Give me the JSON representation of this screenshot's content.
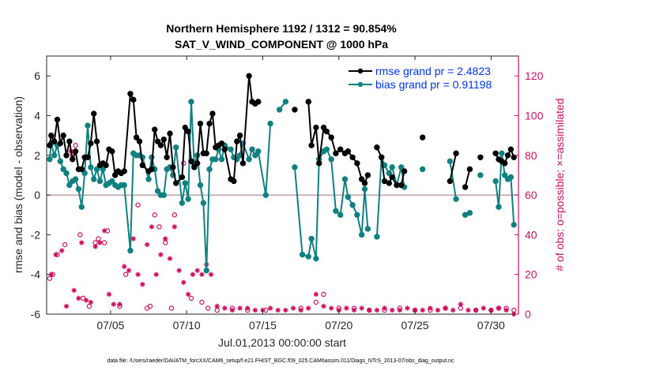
{
  "chart_data": {
    "type": "line",
    "title": "Northern Hemisphere 1192 / 1312 = 90.854%",
    "subtitle": "SAT_V_WIND_COMPONENT @ 1000 hPa",
    "xlabel": "Jul.01,2013 00:00:00 start",
    "ylabel_left": "rmse and bias (model - observation)",
    "ylabel_right": "# of obs: o=possible; ×=assimilated",
    "footer": "data file: /Users/raeder/DAI/ATM_forcXX/CAM6_setup/f.e21.FHIST_BGC.f09_025.CAM6assim.011/Diags_NTrS_2013-07/obs_diag_output.nc",
    "xlim": [
      0.8,
      31.8
    ],
    "ylim_left": [
      -6,
      7
    ],
    "ylim_right": [
      0,
      130
    ],
    "x_ticks": [
      5,
      10,
      15,
      20,
      25,
      30
    ],
    "x_tick_labels": [
      "07/05",
      "07/10",
      "07/15",
      "07/20",
      "07/25",
      "07/30"
    ],
    "y_ticks_left": [
      -6,
      -4,
      -2,
      0,
      2,
      4,
      6
    ],
    "y_ticks_right": [
      0,
      20,
      40,
      60,
      80,
      100,
      120
    ],
    "grid": false,
    "legend_placement": "top-right",
    "colors": {
      "rmse": "#000000",
      "bias": "#108080",
      "obs": "#d01060",
      "zero_line": "#c0a0a8",
      "legend_text": "#0033ee"
    },
    "series": [
      {
        "name": "rmse grand pr = 2.4823",
        "marker": "circle",
        "x": [
          1.0,
          1.1,
          1.3,
          1.5,
          1.7,
          1.9,
          2.1,
          2.3,
          2.5,
          2.7,
          2.9,
          3.1,
          3.3,
          3.5,
          3.7,
          3.9,
          4.1,
          4.3,
          4.5,
          4.7,
          4.9,
          5.1,
          5.3,
          5.5,
          5.7,
          5.9,
          6.3,
          6.5,
          6.7,
          6.9,
          7.1,
          7.5,
          7.7,
          7.9,
          8.1,
          8.3,
          8.5,
          8.7,
          8.9,
          9.1,
          9.3,
          9.7,
          9.9,
          10.1,
          10.3,
          10.5,
          10.7,
          10.9,
          11.1,
          11.3,
          11.5,
          11.7,
          11.9,
          12.1,
          12.3,
          12.5,
          12.9,
          13.1,
          13.3,
          13.5,
          13.7,
          14.1,
          14.3,
          14.5,
          14.7,
          17.1,
          18.0,
          18.2,
          18.5,
          18.7,
          19.0,
          19.2,
          19.5,
          19.8,
          20.1,
          20.4,
          20.6,
          20.9,
          21.2,
          21.5,
          21.7,
          21.9,
          22.5,
          22.8,
          23.0,
          23.3,
          23.5,
          23.8,
          24.1,
          24.3,
          25.5,
          27.3,
          27.7,
          28.3,
          28.6,
          29.3,
          30.3,
          30.5,
          30.7,
          30.9,
          31.1,
          31.3,
          31.5
        ],
        "values": [
          2.5,
          3.0,
          2.7,
          3.8,
          2.6,
          3.0,
          2.0,
          2.7,
          1.8,
          2.2,
          1.3,
          1.3,
          1.9,
          1.9,
          2.6,
          4.1,
          2.7,
          1.5,
          1.6,
          1.5,
          2.3,
          2.2,
          1.0,
          1.2,
          1.1,
          1.2,
          5.1,
          4.8,
          2.9,
          2.7,
          1.5,
          1.2,
          1.3,
          3.3,
          2.7,
          2.5,
          2.8,
          1.9,
          3.1,
          1.4,
          0.6,
          0.9,
          3.4,
          3.2,
          1.7,
          1.4,
          1.6,
          3.6,
          2.1,
          2.1,
          3.6,
          4.1,
          2.4,
          2.5,
          2.6,
          2.3,
          0.8,
          0.7,
          2.7,
          3.0,
          1.6,
          6.0,
          4.7,
          4.6,
          4.7,
          4.3,
          4.7,
          2.5,
          3.4,
          1.6,
          3.4,
          3.2,
          2.9,
          2.1,
          2.3,
          2.1,
          2.2,
          1.9,
          1.6,
          0.8,
          0.6,
          1.0,
          2.4,
          1.9,
          0.7,
          0.6,
          0.9,
          0.5,
          0.5,
          1.2,
          2.9,
          0.7,
          2.1,
          0.4,
          1.3,
          1.9,
          2.1,
          1.8,
          1.7,
          1.6,
          2.0,
          2.3,
          1.9
        ]
      },
      {
        "name": "bias grand pr = 0.91198",
        "marker": "circle",
        "x": [
          1.0,
          1.1,
          1.3,
          1.5,
          1.7,
          1.9,
          2.1,
          2.3,
          2.5,
          2.7,
          2.9,
          3.1,
          3.3,
          3.5,
          3.7,
          3.9,
          4.1,
          4.3,
          4.5,
          4.7,
          4.9,
          5.1,
          5.3,
          5.5,
          5.7,
          5.9,
          6.3,
          6.5,
          6.7,
          6.9,
          7.1,
          7.5,
          7.7,
          7.9,
          8.1,
          8.3,
          8.5,
          8.7,
          8.9,
          9.1,
          9.3,
          9.7,
          9.9,
          10.1,
          10.3,
          10.5,
          10.7,
          10.9,
          11.1,
          11.3,
          11.5,
          11.7,
          11.9,
          12.1,
          12.3,
          12.5,
          12.9,
          13.1,
          13.3,
          13.5,
          13.7,
          14.1,
          14.3,
          14.5,
          14.7,
          15.2,
          15.5,
          16.1,
          16.5,
          17.1,
          17.6,
          18.0,
          18.2,
          18.5,
          18.7,
          19.0,
          19.2,
          19.5,
          19.8,
          20.1,
          20.4,
          20.6,
          20.9,
          21.2,
          21.5,
          21.7,
          21.9,
          22.5,
          22.8,
          23.0,
          23.3,
          23.5,
          23.8,
          24.1,
          24.3,
          25.5,
          27.3,
          27.7,
          28.3,
          28.6,
          29.3,
          30.3,
          30.5,
          30.7,
          30.9,
          31.1,
          31.3,
          31.5
        ],
        "values": [
          1.8,
          2.6,
          2.0,
          2.5,
          1.7,
          1.3,
          1.1,
          0.5,
          0.7,
          0.8,
          0.3,
          -0.6,
          1.1,
          3.5,
          1.4,
          0.8,
          1.3,
          0.7,
          1.3,
          0.5,
          0.6,
          0.7,
          0.5,
          0.4,
          0.5,
          0.5,
          -2.8,
          2.1,
          2.0,
          2.0,
          1.9,
          0.8,
          1.9,
          1.3,
          0.2,
          0.0,
          0.0,
          1.3,
          1.4,
          1.0,
          2.4,
          -0.4,
          0.6,
          -0.2,
          4.7,
          1.5,
          2.0,
          0.5,
          -0.4,
          -3.8,
          1.3,
          1.8,
          1.8,
          2.3,
          1.8,
          2.5,
          2.3,
          1.9,
          1.8,
          2.0,
          2.6,
          1.8,
          2.3,
          2.0,
          2.2,
          0.0,
          3.6,
          4.3,
          4.7,
          1.4,
          -3.0,
          -3.1,
          -2.2,
          -3.2,
          1.8,
          2.2,
          2.3,
          1.8,
          -0.8,
          -1.0,
          0.8,
          -0.1,
          -0.5,
          -1.0,
          -2.0,
          0.3,
          -1.7,
          -2.1,
          1.9,
          1.5,
          1.1,
          1.4,
          0.5,
          1.4,
          0.4,
          1.3,
          1.7,
          -0.2,
          -1.0,
          -0.9,
          1.0,
          0.7,
          -0.6,
          2.1,
          1.0,
          0.8,
          0.9,
          -1.5
        ]
      },
      {
        "name": "obs possible",
        "marker": "o",
        "axis": "right",
        "x": [
          1.0,
          1.2,
          1.5,
          2.0,
          2.5,
          2.7,
          3.0,
          3.2,
          3.6,
          4.0,
          4.2,
          4.6,
          4.8,
          5.6,
          6.0,
          6.8,
          7.4,
          7.6,
          7.9,
          8.2,
          8.6,
          9.0,
          9.2,
          9.8,
          10.3,
          11.0,
          11.4,
          12.0,
          13.0,
          14.0,
          15.2,
          17.5,
          18.5,
          19.0,
          20.0,
          21.0,
          22.0,
          23.0,
          24.0,
          25.0,
          26.0,
          27.0,
          28.0,
          29.0,
          30.0,
          30.5,
          31.0,
          31.5
        ],
        "values": [
          18,
          20,
          30,
          35,
          80,
          85,
          40,
          8,
          4,
          36,
          38,
          36,
          42,
          4,
          20,
          55,
          3,
          4,
          50,
          44,
          36,
          3,
          50,
          76,
          8,
          6,
          3,
          2,
          3,
          2,
          2,
          3,
          6,
          10,
          3,
          3,
          2,
          2,
          3,
          2,
          2,
          3,
          3,
          2,
          2,
          3,
          3,
          2
        ]
      },
      {
        "name": "obs assimilated",
        "marker": "*",
        "axis": "right",
        "x": [
          1.1,
          1.4,
          1.8,
          2.1,
          2.4,
          2.6,
          2.9,
          3.1,
          3.4,
          3.7,
          4.0,
          4.3,
          4.6,
          4.9,
          5.2,
          5.6,
          5.9,
          6.2,
          6.5,
          6.8,
          7.1,
          7.4,
          7.7,
          8.0,
          8.3,
          8.6,
          8.9,
          9.2,
          9.5,
          9.8,
          10.1,
          10.4,
          10.7,
          11.0,
          11.3,
          11.6,
          12.0,
          12.5,
          13.0,
          13.5,
          14.0,
          14.5,
          15.0,
          15.5,
          16.0,
          16.5,
          17.0,
          17.5,
          18.0,
          18.5,
          19.0,
          19.5,
          20.0,
          20.5,
          21.0,
          21.5,
          22.0,
          22.5,
          23.0,
          23.5,
          24.0,
          24.5,
          25.0,
          25.5,
          26.0,
          26.5,
          27.0,
          27.5,
          28.0,
          28.5,
          29.0,
          29.5,
          30.0,
          30.5,
          31.0,
          31.5
        ],
        "values": [
          20,
          30,
          32,
          4,
          82,
          12,
          8,
          36,
          7,
          6,
          34,
          36,
          42,
          10,
          5,
          5,
          24,
          22,
          38,
          20,
          15,
          35,
          44,
          20,
          30,
          38,
          28,
          44,
          22,
          16,
          10,
          20,
          22,
          20,
          25,
          20,
          4,
          3,
          2,
          3,
          3,
          2,
          2,
          3,
          2,
          2,
          3,
          2,
          3,
          10,
          4,
          3,
          2,
          3,
          2,
          3,
          2,
          2,
          3,
          2,
          2,
          3,
          2,
          2,
          3,
          2,
          3,
          2,
          5,
          2,
          2,
          3,
          2,
          3,
          2,
          0
        ]
      }
    ]
  }
}
